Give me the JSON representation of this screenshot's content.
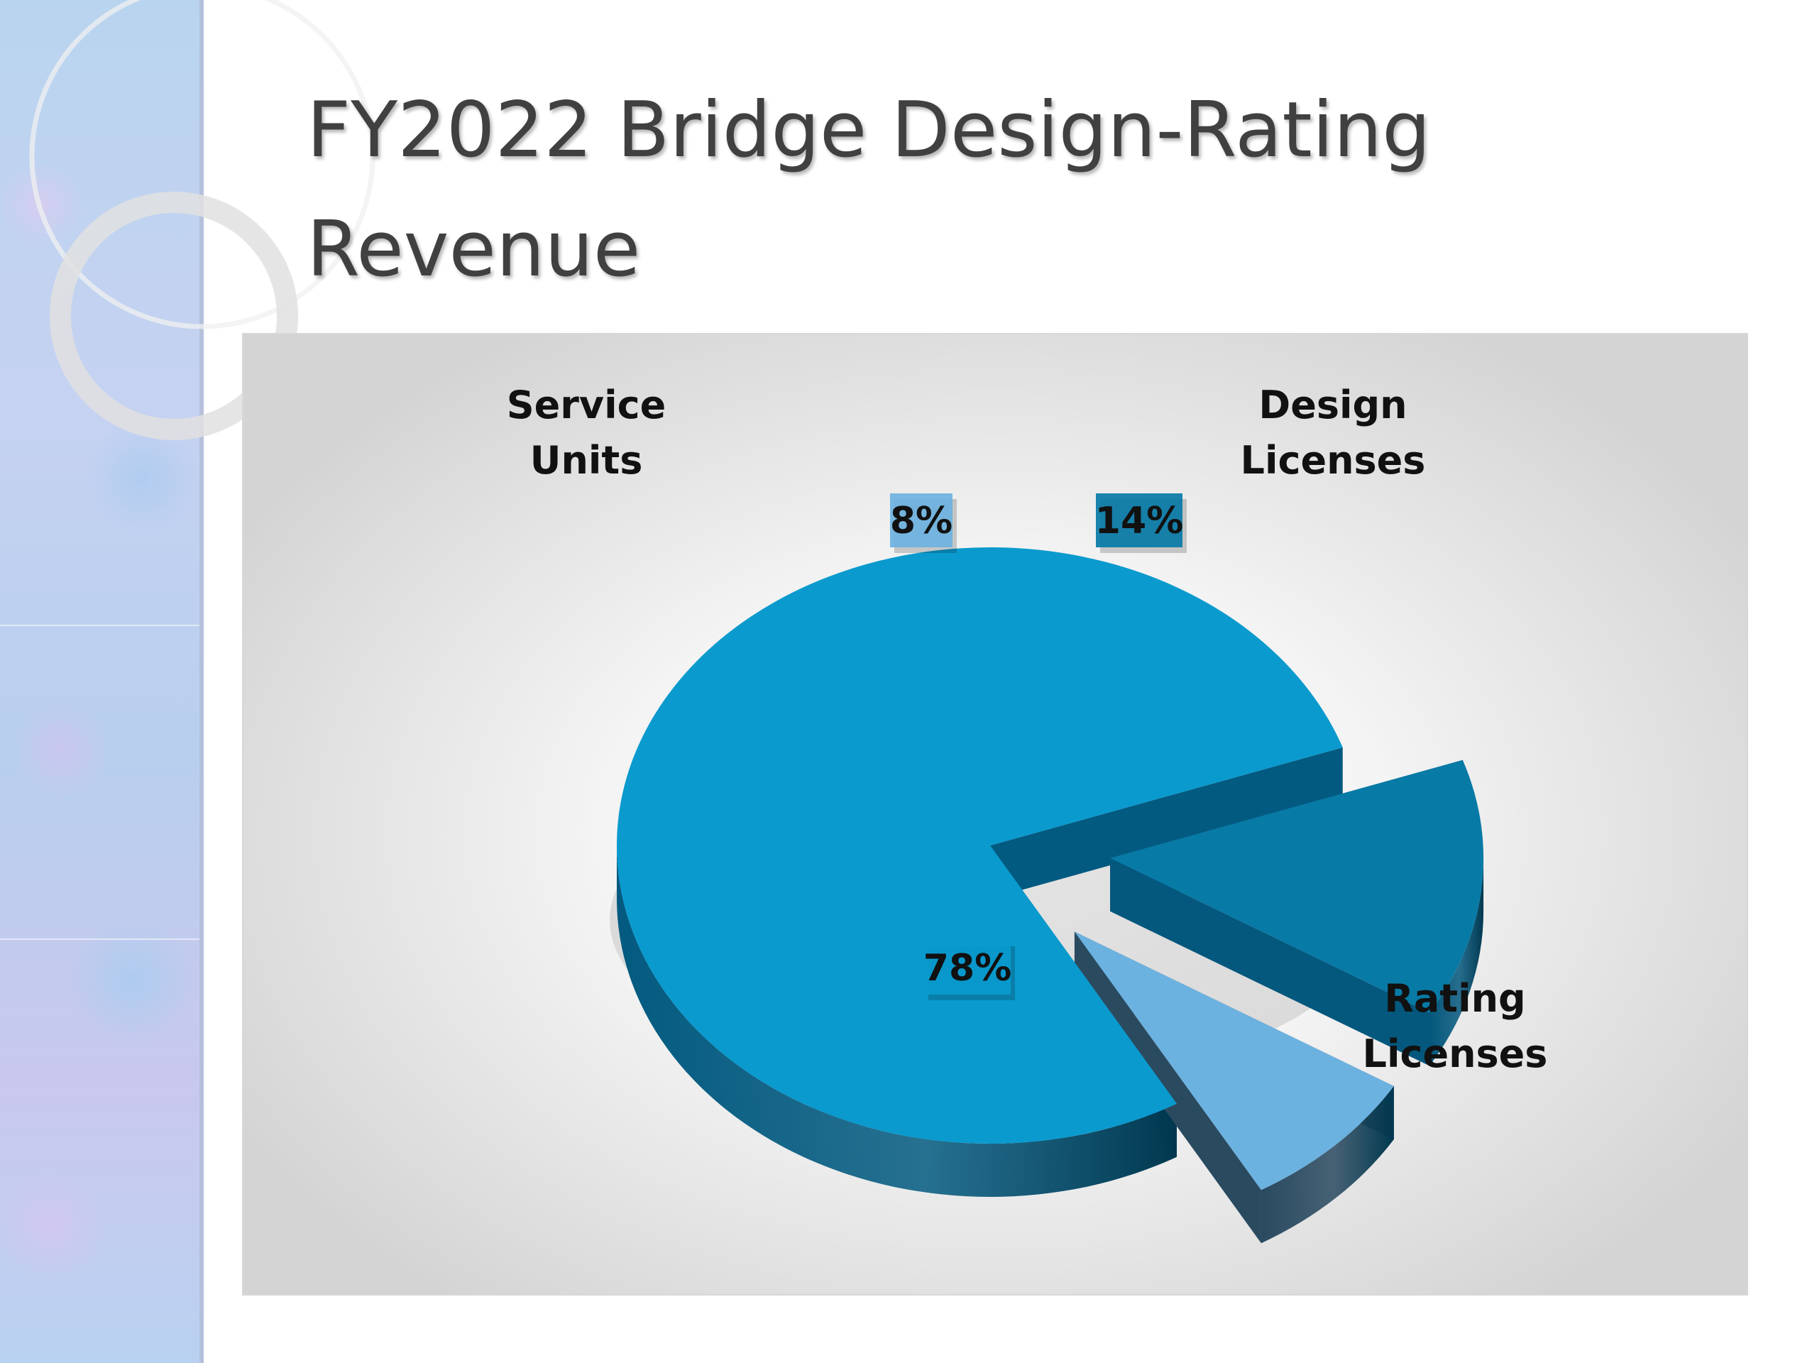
{
  "slide": {
    "title_line1": "FY2022 Bridge Design-Rating",
    "title_line2": "Revenue"
  },
  "chart_data": {
    "type": "pie",
    "style": "3d-exploded",
    "title": "",
    "categories": [
      "Rating Licenses",
      "Design Licenses",
      "Service Units"
    ],
    "values": [
      78,
      14,
      8
    ],
    "unit": "%",
    "data_labels": [
      "78%",
      "14%",
      "8%"
    ],
    "category_label_lines": [
      [
        "Rating",
        "Licenses"
      ],
      [
        "Design",
        "Licenses"
      ],
      [
        "Service",
        "Units"
      ]
    ],
    "colors": {
      "Rating Licenses": "#0a9ace",
      "Design Licenses": "#087aa6",
      "Service Units": "#6cb2e0"
    },
    "side_colors": {
      "Rating Licenses": "#035a80",
      "Design Licenses": "#04577d",
      "Service Units": "#2a4a60"
    },
    "legend": "none"
  }
}
